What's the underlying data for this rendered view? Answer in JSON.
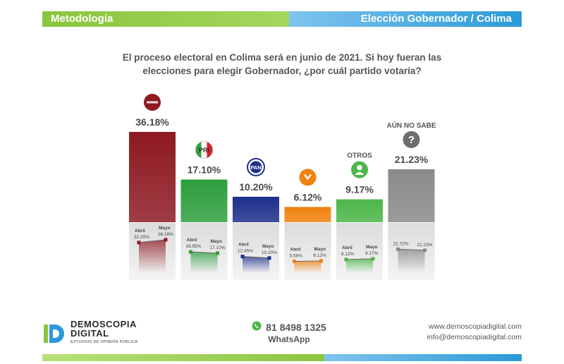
{
  "header": {
    "left": "Metodología",
    "right": "Elección Gobernador / Colima"
  },
  "question": "El proceso electoral en Colima será en junio de 2021. Si hoy fueran las elecciones para elegir Gobernador, ¿por cuál partido votaría?",
  "chart_data": {
    "type": "bar",
    "categories": [
      "MORENA",
      "PRI",
      "PAN",
      "MC",
      "OTROS",
      "AÚN NO SABE"
    ],
    "values": [
      36.18,
      17.1,
      10.2,
      6.12,
      9.17,
      21.23
    ],
    "value_labels": [
      "36.18%",
      "17.10%",
      "10.20%",
      "6.12%",
      "9.17%",
      "21.23%"
    ],
    "category_labels": [
      "",
      "",
      "",
      "",
      "OTROS",
      "AÚN NO SABE"
    ],
    "colors": [
      "#8e1a22",
      "#2e9e3e",
      "#1e2f8c",
      "#f0820f",
      "#4cb648",
      "#8a8a8a"
    ],
    "ylim": [
      0,
      40
    ],
    "trend": {
      "labels": [
        "Abril",
        "Mayo"
      ],
      "series": [
        {
          "abril": 32.2,
          "mayo": 36.18,
          "abril_label": "32.20%",
          "mayo_label": "36.18%"
        },
        {
          "abril": 18.95,
          "mayo": 17.1,
          "abril_label": "18.95%",
          "mayo_label": "17.10%"
        },
        {
          "abril": 12.45,
          "mayo": 10.2,
          "abril_label": "12.45%",
          "mayo_label": "10.20%"
        },
        {
          "abril": 5.56,
          "mayo": 6.12,
          "abril_label": "5.56%",
          "mayo_label": "6.12%"
        },
        {
          "abril": 8.12,
          "mayo": 9.17,
          "abril_label": "8.12%",
          "mayo_label": "9.17%"
        },
        {
          "abril": 22.72,
          "mayo": 21.23,
          "abril_label": "22.72%",
          "mayo_label": "21.23%"
        }
      ]
    }
  },
  "icons": [
    "morena-logo-icon",
    "pri-logo-icon",
    "pan-logo-icon",
    "mc-logo-icon",
    "user-icon",
    "question-icon"
  ],
  "footer": {
    "logo_line1": "DEMOSCOPIA",
    "logo_line2": "DIGITAL",
    "logo_sub": "ESTUDIOS DE OPINIÓN PÚBLICA",
    "phone": "81 8498 1325",
    "whatsapp": "WhatsApp",
    "website": "www.demoscopiadigital.com",
    "email": "info@demoscopiadigital.com"
  }
}
